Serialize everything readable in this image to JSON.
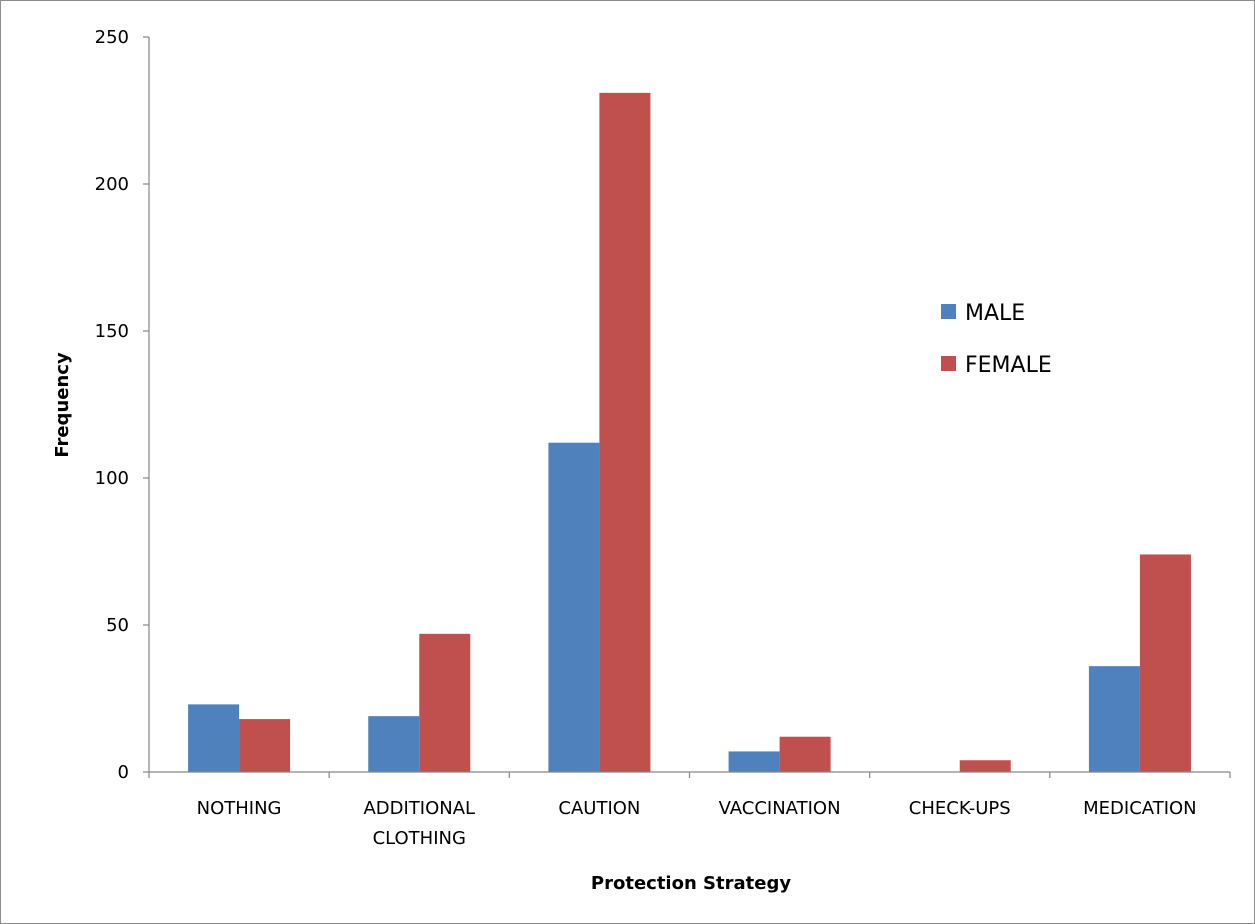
{
  "chart_data": {
    "type": "bar",
    "title": "",
    "xlabel": "Protection Strategy",
    "ylabel": "Frequency",
    "categories": [
      [
        "NOTHING"
      ],
      [
        "ADDITIONAL",
        "CLOTHING"
      ],
      [
        "CAUTION"
      ],
      [
        "VACCINATION"
      ],
      [
        "CHECK-UPS"
      ],
      [
        "MEDICATION"
      ]
    ],
    "series": [
      {
        "name": "MALE",
        "color": "#4f81bd",
        "values": [
          23,
          19,
          112,
          7,
          0,
          36
        ]
      },
      {
        "name": "FEMALE",
        "color": "#c0504d",
        "values": [
          18,
          47,
          231,
          12,
          4,
          74
        ]
      }
    ],
    "ylim": [
      0,
      250
    ],
    "yticks": [
      0,
      50,
      100,
      150,
      200,
      250
    ],
    "grid": false,
    "legend_position": "right"
  }
}
